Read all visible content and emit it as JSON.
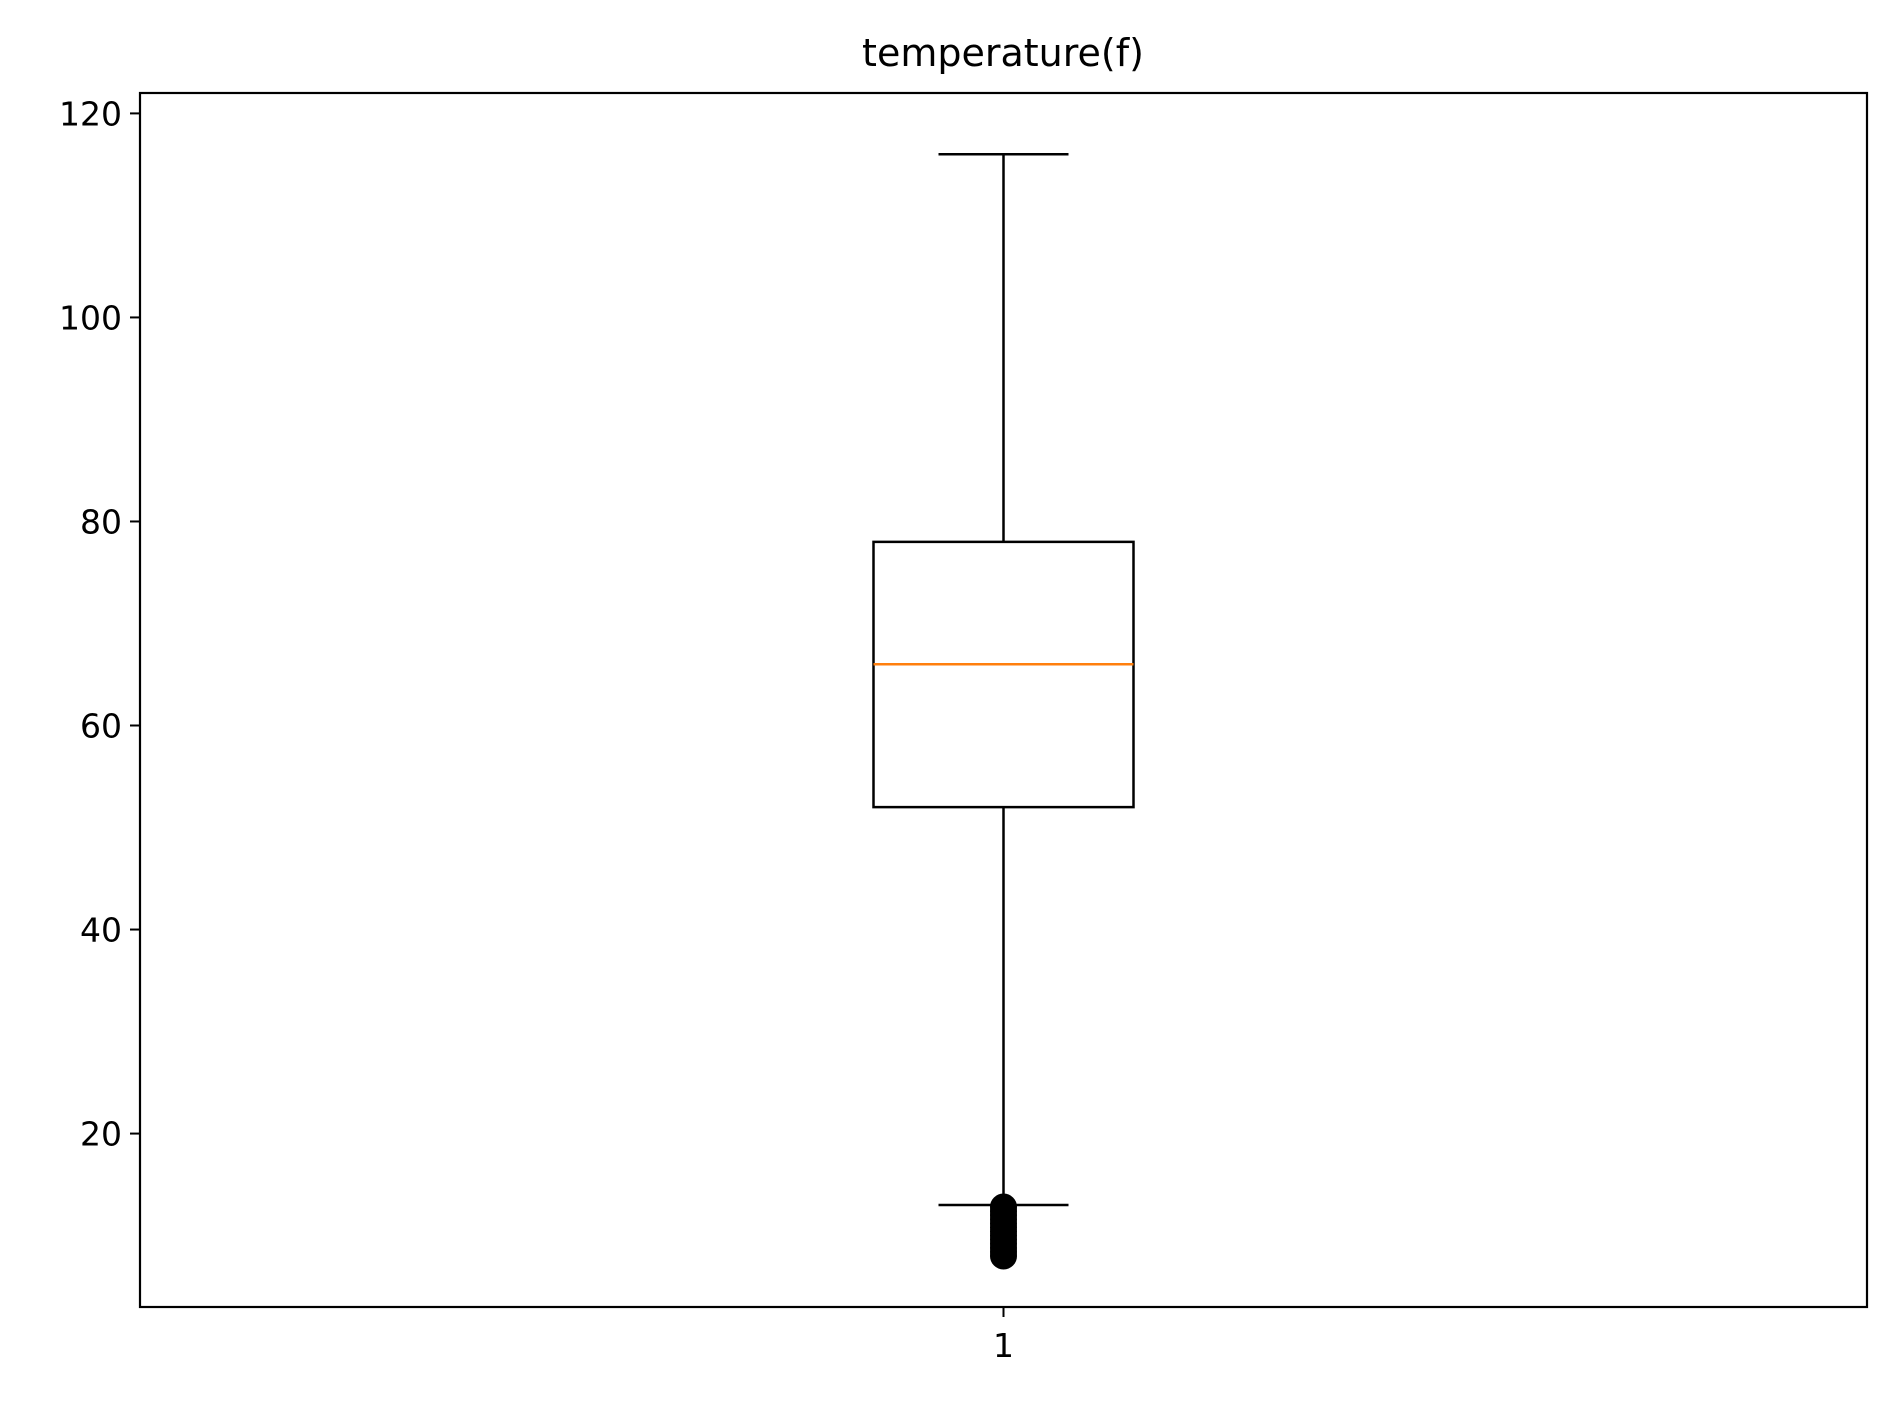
{
  "chart_data": {
    "type": "box",
    "title": "temperature(f)",
    "xlabel": "",
    "ylabel": "",
    "categories": [
      "1"
    ],
    "ylim": [
      3,
      122
    ],
    "yticks": [
      20,
      40,
      60,
      80,
      100,
      120
    ],
    "grid": false,
    "boxes": [
      {
        "category": "1",
        "whisker_low": 13,
        "q1": 52,
        "median": 66,
        "q3": 78,
        "whisker_high": 116,
        "outliers": [
          12.8,
          12.4,
          12.0,
          11.6,
          11.2,
          10.8,
          10.4,
          10.0,
          9.6,
          9.2,
          8.8,
          8.4,
          8.0
        ]
      }
    ],
    "colors": {
      "box": "#000000",
      "median": "#ff7f0e",
      "whisker": "#000000",
      "flier": "#000000"
    }
  }
}
